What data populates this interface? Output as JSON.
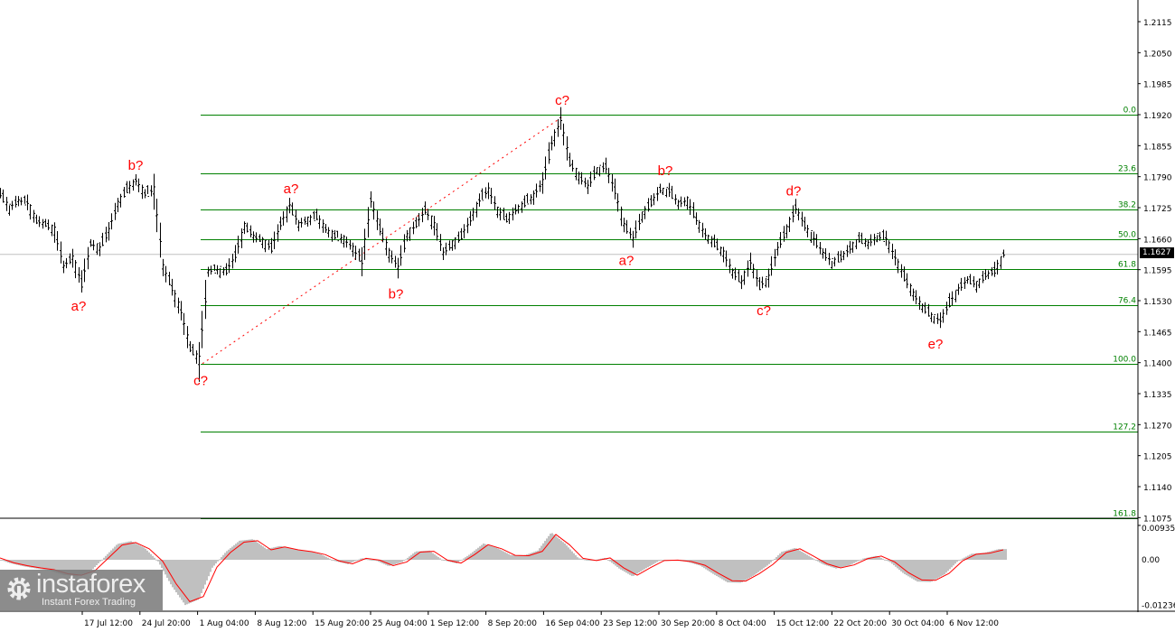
{
  "chart_data": {
    "type": "ohlc",
    "price_axis": {
      "ticks": [
        "1.2115",
        "1.2050",
        "1.1985",
        "1.1920",
        "1.1855",
        "1.1790",
        "1.1725",
        "1.1660",
        "1.1595",
        "1.1530",
        "1.1465",
        "1.1400",
        "1.1335",
        "1.1270",
        "1.1205",
        "1.1140",
        "1.1075"
      ],
      "range": [
        1.1075,
        1.219
      ]
    },
    "time_axis": {
      "ticks": [
        "17 Jul 12:00",
        "24 Jul 20:00",
        "1 Aug 04:00",
        "8 Aug 12:00",
        "15 Aug 20:00",
        "25 Aug 04:00",
        "1 Sep 12:00",
        "8 Sep 20:00",
        "16 Sep 04:00",
        "23 Sep 12:00",
        "30 Sep 20:00",
        "8 Oct 04:00",
        "15 Oct 12:00",
        "22 Oct 20:00",
        "30 Oct 04:00",
        "6 Nov 12:00"
      ]
    },
    "current_price": "1.1627",
    "closes": [
      1.1753,
      1.1725,
      1.174,
      1.1735,
      1.1697,
      1.169,
      1.1678,
      1.1602,
      1.1621,
      1.1565,
      1.1649,
      1.164,
      1.1678,
      1.1734,
      1.1763,
      1.1782,
      1.1753,
      1.1763,
      1.1602,
      1.1555,
      1.1507,
      1.143,
      1.1407,
      1.1592,
      1.1595,
      1.1592,
      1.1625,
      1.1687,
      1.1665,
      1.1655,
      1.164,
      1.169,
      1.173,
      1.169,
      1.17,
      1.1706,
      1.168,
      1.1665,
      1.1659,
      1.164,
      1.161,
      1.174,
      1.168,
      1.163,
      1.16,
      1.1668,
      1.169,
      1.172,
      1.169,
      1.163,
      1.165,
      1.1665,
      1.17,
      1.174,
      1.1763,
      1.172,
      1.17,
      1.172,
      1.1734,
      1.175,
      1.178,
      1.186,
      1.191,
      1.182,
      1.1791,
      1.177,
      1.1805,
      1.181,
      1.176,
      1.169,
      1.166,
      1.171,
      1.1735,
      1.1763,
      1.176,
      1.1734,
      1.174,
      1.17,
      1.1668,
      1.165,
      1.163,
      1.159,
      1.157,
      1.1611,
      1.156,
      1.158,
      1.164,
      1.168,
      1.1725,
      1.1687,
      1.166,
      1.163,
      1.1611,
      1.162,
      1.164,
      1.1659,
      1.165,
      1.1665,
      1.166,
      1.162,
      1.158,
      1.1545,
      1.1517,
      1.1498,
      1.1488,
      1.1525,
      1.1555,
      1.1574,
      1.1564,
      1.1583,
      1.1592,
      1.1627
    ],
    "fibonacci": {
      "color": "#008000",
      "levels": [
        {
          "label": "0.0",
          "price": 1.192
        },
        {
          "label": "23.6",
          "price": 1.1797
        },
        {
          "label": "38.2",
          "price": 1.1721
        },
        {
          "label": "50.0",
          "price": 1.1658
        },
        {
          "label": "61.8",
          "price": 1.1597
        },
        {
          "label": "76.4",
          "price": 1.152
        },
        {
          "label": "100.0",
          "price": 1.1397
        },
        {
          "label": "127,2",
          "price": 1.1255
        },
        {
          "label": "161.8",
          "price": 1.1074
        }
      ],
      "trend_line": {
        "from_price": 1.1398,
        "to_price": 1.1918,
        "color": "#ff0000",
        "style": "dotted"
      }
    },
    "wave_labels": [
      {
        "text": "b?",
        "price": 1.1782,
        "pos": "above"
      },
      {
        "text": "a?",
        "price": 1.1555,
        "pos": "below"
      },
      {
        "text": "c?",
        "price": 1.1398,
        "pos": "below"
      },
      {
        "text": "a?",
        "price": 1.1733,
        "pos": "above"
      },
      {
        "text": "b?",
        "price": 1.158,
        "pos": "below"
      },
      {
        "text": "c?",
        "price": 1.1918,
        "pos": "above"
      },
      {
        "text": "a?",
        "price": 1.165,
        "pos": "below"
      },
      {
        "text": "b?",
        "price": 1.177,
        "pos": "above"
      },
      {
        "text": "c?",
        "price": 1.1545,
        "pos": "below"
      },
      {
        "text": "d?",
        "price": 1.1728,
        "pos": "above"
      },
      {
        "text": "e?",
        "price": 1.1475,
        "pos": "below"
      }
    ],
    "oscillator": {
      "axis_ticks": [
        "0.00935",
        "0.00",
        "-0.01236"
      ],
      "range": [
        -0.01236,
        0.00935
      ],
      "histogram_color": "#c0c0c0",
      "signal_color": "#ff0000",
      "values": [
        0.0005,
        -0.0008,
        -0.0016,
        -0.0022,
        -0.0027,
        -0.0038,
        -0.0042,
        -0.003,
        0.0005,
        0.004,
        0.0047,
        0.003,
        -0.0004,
        -0.0066,
        -0.0114,
        -0.01,
        -0.002,
        0.002,
        0.0048,
        0.0052,
        0.0027,
        0.0035,
        0.0027,
        0.0022,
        0.0014,
        -0.0003,
        -0.0011,
        0.0004,
        -0.0001,
        -0.0016,
        -0.0006,
        0.0021,
        0.0023,
        -0.0001,
        -0.0009,
        0.0014,
        0.0041,
        0.003,
        0.0012,
        0.0011,
        0.0023,
        0.0069,
        0.0041,
        0.0004,
        -0.0002,
        0.0005,
        -0.0022,
        -0.0042,
        -0.0021,
        -0.0002,
        -0.0001,
        -0.0005,
        -0.0015,
        -0.0037,
        -0.0057,
        -0.0058,
        -0.0038,
        -0.0013,
        0.002,
        0.003,
        0.001,
        -0.0011,
        -0.0022,
        -0.0014,
        0.0003,
        0.001,
        -0.0006,
        -0.0035,
        -0.0055,
        -0.0056,
        -0.0037,
        -0.0003,
        0.0015,
        0.0018,
        0.0027
      ]
    }
  },
  "logo": {
    "name": "instaforex",
    "tagline": "Instant Forex Trading"
  }
}
